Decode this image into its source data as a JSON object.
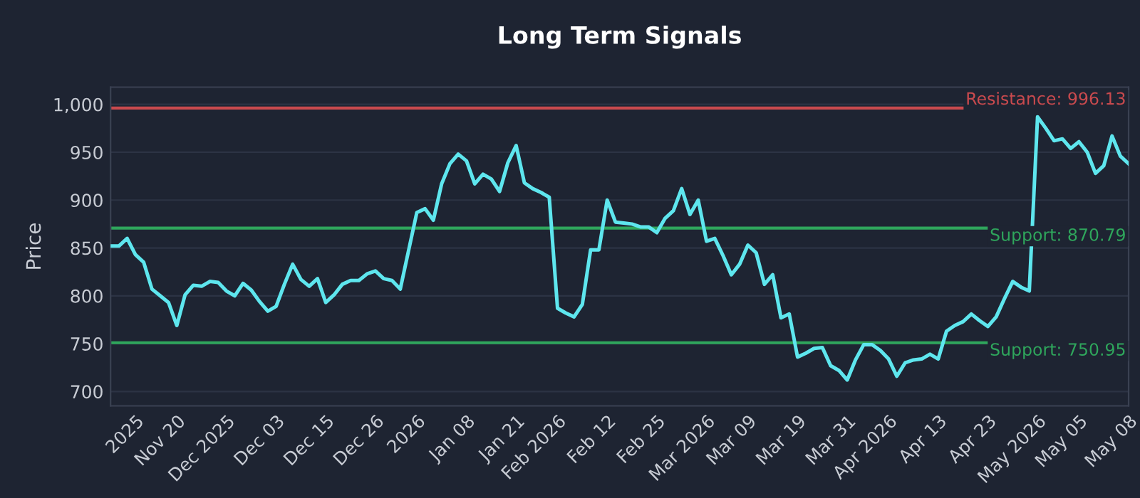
{
  "chart_data": {
    "type": "line",
    "title": "Long Term Signals",
    "ylabel": "Price",
    "categories": [
      null,
      null,
      null,
      "2025",
      null,
      null,
      null,
      null,
      "Nov 20",
      null,
      null,
      null,
      null,
      null,
      "Dec 2025",
      null,
      null,
      null,
      null,
      null,
      "Dec 03",
      null,
      null,
      null,
      null,
      null,
      "Dec 15",
      null,
      null,
      null,
      null,
      null,
      "Dec 26",
      null,
      null,
      null,
      null,
      "2026",
      null,
      null,
      null,
      null,
      null,
      "Jan 08",
      null,
      null,
      null,
      null,
      null,
      "Jan 21",
      null,
      null,
      null,
      null,
      "Feb 2026",
      null,
      null,
      null,
      null,
      null,
      "Feb 12",
      null,
      null,
      null,
      null,
      null,
      "Feb 25",
      null,
      null,
      null,
      null,
      null,
      "Mar 2026",
      null,
      null,
      null,
      null,
      "Mar 09",
      null,
      null,
      null,
      null,
      null,
      "Mar 19",
      null,
      null,
      null,
      null,
      null,
      "Mar 31",
      null,
      null,
      null,
      null,
      "Apr 2026",
      null,
      null,
      null,
      null,
      null,
      "Apr 13",
      null,
      null,
      null,
      null,
      null,
      "Apr 23",
      null,
      null,
      null,
      null,
      null,
      "May 2026",
      null,
      null,
      null,
      null,
      "May 05",
      null,
      null,
      null,
      null,
      null,
      "May 08"
    ],
    "series": [
      {
        "color": "#5ee6ee",
        "values": [
          852,
          852,
          860,
          843,
          835,
          807,
          800,
          793,
          769,
          801,
          811,
          810,
          815,
          814,
          805,
          800,
          813,
          806,
          794,
          784,
          789,
          812,
          833,
          817,
          810,
          818,
          793,
          801,
          812,
          816,
          816,
          823,
          826,
          818,
          816,
          807,
          847,
          887,
          891,
          879,
          917,
          938,
          948,
          941,
          917,
          927,
          922,
          909,
          939,
          957,
          918,
          912,
          908,
          903,
          787,
          782,
          778,
          791,
          848,
          848,
          900,
          877,
          876,
          875,
          872,
          872,
          866,
          881,
          889,
          912,
          885,
          900,
          857,
          860,
          842,
          822,
          833,
          853,
          845,
          812,
          822,
          777,
          781,
          736,
          740,
          745,
          746,
          727,
          722,
          712,
          733,
          749,
          749,
          743,
          734,
          716,
          730,
          733,
          734,
          739,
          734,
          763,
          769,
          773,
          781,
          774,
          768,
          778,
          797,
          815,
          809,
          805,
          987,
          975,
          962,
          964,
          954,
          961,
          950,
          928,
          936,
          967,
          946,
          938
        ]
      }
    ],
    "ylim": [
      685,
      1018
    ],
    "yticks": [
      700,
      750,
      800,
      850,
      900,
      950,
      {
        "value": 1000,
        "label": "1,000"
      }
    ],
    "grid": "y",
    "line_style": "solid",
    "marker": "none",
    "ref_lines": [
      {
        "axis": "y",
        "value": 996.13,
        "label": "Resistance: 996.13",
        "color": "#c94a4e"
      },
      {
        "axis": "y",
        "value": 870.79,
        "label": "Support: 870.79",
        "color": "#2fa65c"
      },
      {
        "axis": "y",
        "value": 750.95,
        "label": "Support: 750.95",
        "color": "#2fa65c"
      }
    ]
  }
}
